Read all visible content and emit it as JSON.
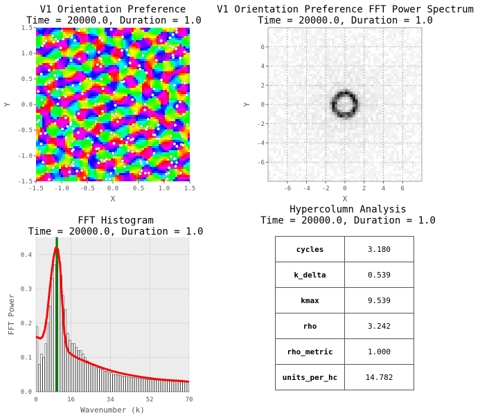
{
  "panels": {
    "orientation": {
      "title": "V1 Orientation Preference",
      "subtitle": "Time = 20000.0, Duration = 1.0"
    },
    "fft": {
      "title": "V1 Orientation Preference FFT Power Spectrum",
      "subtitle": "Time = 20000.0, Duration = 1.0"
    },
    "histogram": {
      "title": "FFT Histogram",
      "subtitle": "Time = 20000.0, Duration = 1.0"
    },
    "hypercolumn": {
      "title": "Hypercolumn Analysis",
      "subtitle": "Time = 20000.0, Duration = 1.0",
      "rows": [
        {
          "key": "cycles",
          "value": "3.180"
        },
        {
          "key": "k_delta",
          "value": "0.539"
        },
        {
          "key": "kmax",
          "value": "9.539"
        },
        {
          "key": "rho",
          "value": "3.242"
        },
        {
          "key": "rho_metric",
          "value": "1.000"
        },
        {
          "key": "units_per_hc",
          "value": "14.782"
        }
      ]
    }
  },
  "chart_data": [
    {
      "type": "heatmap",
      "name": "orientation-map",
      "xlabel": "X",
      "ylabel": "Y",
      "xlim": [
        -1.5,
        1.5
      ],
      "ylim": [
        -1.5,
        1.5
      ],
      "xticks": [
        "-1.5",
        "-1.0",
        "-0.5",
        "0.0",
        "0.5",
        "1.0",
        "1.5"
      ],
      "yticks": [
        "1.5",
        "1.0",
        "0.5",
        "0.0",
        "-0.5",
        "-1.0",
        "-1.5"
      ],
      "colormap": "hsv",
      "pinwheel_marker_color": "#ffffff"
    },
    {
      "type": "heatmap",
      "name": "fft-power-spectrum",
      "xlabel": "X",
      "ylabel": "Y",
      "xlim": [
        -8,
        8
      ],
      "ylim": [
        -8,
        8
      ],
      "xticks": [
        "-6",
        "-4",
        "-2",
        "0",
        "2",
        "4",
        "6"
      ],
      "yticks": [
        "6",
        "4",
        "2",
        "0",
        "-2",
        "-4",
        "-6"
      ],
      "grid": true,
      "colormap": "gray_r"
    },
    {
      "type": "bar",
      "name": "fft-histogram",
      "xlabel": "Wavenumber (k)",
      "ylabel": "FFT Power",
      "xlim": [
        0,
        70
      ],
      "ylim": [
        0,
        0.45
      ],
      "xticks": [
        "0",
        "16",
        "34",
        "52",
        "70"
      ],
      "yticks": [
        "0.0",
        "0.1",
        "0.2",
        "0.3",
        "0.4"
      ],
      "grid": true,
      "background": "#ececec",
      "bars": [
        {
          "k": 0,
          "value": 0.19
        },
        {
          "k": 1,
          "value": 0.08
        },
        {
          "k": 2,
          "value": 0.11
        },
        {
          "k": 3,
          "value": 0.1
        },
        {
          "k": 4,
          "value": 0.14
        },
        {
          "k": 5,
          "value": 0.2
        },
        {
          "k": 6,
          "value": 0.25
        },
        {
          "k": 7,
          "value": 0.33
        },
        {
          "k": 8,
          "value": 0.37
        },
        {
          "k": 9,
          "value": 0.45
        },
        {
          "k": 10,
          "value": 0.38
        },
        {
          "k": 11,
          "value": 0.34
        },
        {
          "k": 12,
          "value": 0.28
        },
        {
          "k": 13,
          "value": 0.24
        },
        {
          "k": 14,
          "value": 0.17
        },
        {
          "k": 15,
          "value": 0.15
        },
        {
          "k": 16,
          "value": 0.14
        },
        {
          "k": 17,
          "value": 0.14
        },
        {
          "k": 18,
          "value": 0.13
        },
        {
          "k": 19,
          "value": 0.12
        },
        {
          "k": 20,
          "value": 0.12
        },
        {
          "k": 21,
          "value": 0.11
        },
        {
          "k": 22,
          "value": 0.1
        },
        {
          "k": 23,
          "value": 0.09
        },
        {
          "k": 24,
          "value": 0.085
        },
        {
          "k": 25,
          "value": 0.08
        },
        {
          "k": 26,
          "value": 0.075
        },
        {
          "k": 27,
          "value": 0.07
        },
        {
          "k": 28,
          "value": 0.07
        },
        {
          "k": 29,
          "value": 0.065
        },
        {
          "k": 30,
          "value": 0.065
        },
        {
          "k": 31,
          "value": 0.06
        },
        {
          "k": 32,
          "value": 0.06
        },
        {
          "k": 33,
          "value": 0.055
        },
        {
          "k": 34,
          "value": 0.055
        },
        {
          "k": 35,
          "value": 0.05
        },
        {
          "k": 36,
          "value": 0.05
        },
        {
          "k": 37,
          "value": 0.05
        },
        {
          "k": 38,
          "value": 0.048
        },
        {
          "k": 39,
          "value": 0.046
        },
        {
          "k": 40,
          "value": 0.045
        },
        {
          "k": 41,
          "value": 0.044
        },
        {
          "k": 42,
          "value": 0.043
        },
        {
          "k": 43,
          "value": 0.042
        },
        {
          "k": 44,
          "value": 0.041
        },
        {
          "k": 45,
          "value": 0.04
        },
        {
          "k": 46,
          "value": 0.04
        },
        {
          "k": 47,
          "value": 0.039
        },
        {
          "k": 48,
          "value": 0.038
        },
        {
          "k": 49,
          "value": 0.037
        },
        {
          "k": 50,
          "value": 0.036
        },
        {
          "k": 51,
          "value": 0.036
        },
        {
          "k": 52,
          "value": 0.035
        },
        {
          "k": 53,
          "value": 0.035
        },
        {
          "k": 54,
          "value": 0.034
        },
        {
          "k": 55,
          "value": 0.034
        },
        {
          "k": 56,
          "value": 0.033
        },
        {
          "k": 57,
          "value": 0.033
        },
        {
          "k": 58,
          "value": 0.032
        },
        {
          "k": 59,
          "value": 0.032
        },
        {
          "k": 60,
          "value": 0.031
        },
        {
          "k": 61,
          "value": 0.031
        },
        {
          "k": 62,
          "value": 0.03
        },
        {
          "k": 63,
          "value": 0.03
        },
        {
          "k": 64,
          "value": 0.03
        },
        {
          "k": 65,
          "value": 0.029
        },
        {
          "k": 66,
          "value": 0.029
        },
        {
          "k": 67,
          "value": 0.028
        },
        {
          "k": 68,
          "value": 0.028
        },
        {
          "k": 69,
          "value": 0.03
        }
      ],
      "fit_curve": {
        "color": "#ff0000",
        "points": [
          [
            0,
            0.16
          ],
          [
            2,
            0.155
          ],
          [
            3,
            0.16
          ],
          [
            4,
            0.18
          ],
          [
            5,
            0.22
          ],
          [
            6,
            0.28
          ],
          [
            7,
            0.34
          ],
          [
            8,
            0.39
          ],
          [
            9,
            0.42
          ],
          [
            9.54,
            0.42
          ],
          [
            10,
            0.415
          ],
          [
            11,
            0.37
          ],
          [
            12,
            0.26
          ],
          [
            13,
            0.17
          ],
          [
            14,
            0.13
          ],
          [
            15,
            0.115
          ],
          [
            17,
            0.105
          ],
          [
            20,
            0.095
          ],
          [
            25,
            0.082
          ],
          [
            30,
            0.07
          ],
          [
            35,
            0.06
          ],
          [
            40,
            0.052
          ],
          [
            45,
            0.046
          ],
          [
            50,
            0.041
          ],
          [
            55,
            0.037
          ],
          [
            60,
            0.034
          ],
          [
            65,
            0.032
          ],
          [
            70,
            0.029
          ]
        ]
      },
      "kmax_line": {
        "k": 9.539,
        "color": "#008000"
      }
    }
  ]
}
